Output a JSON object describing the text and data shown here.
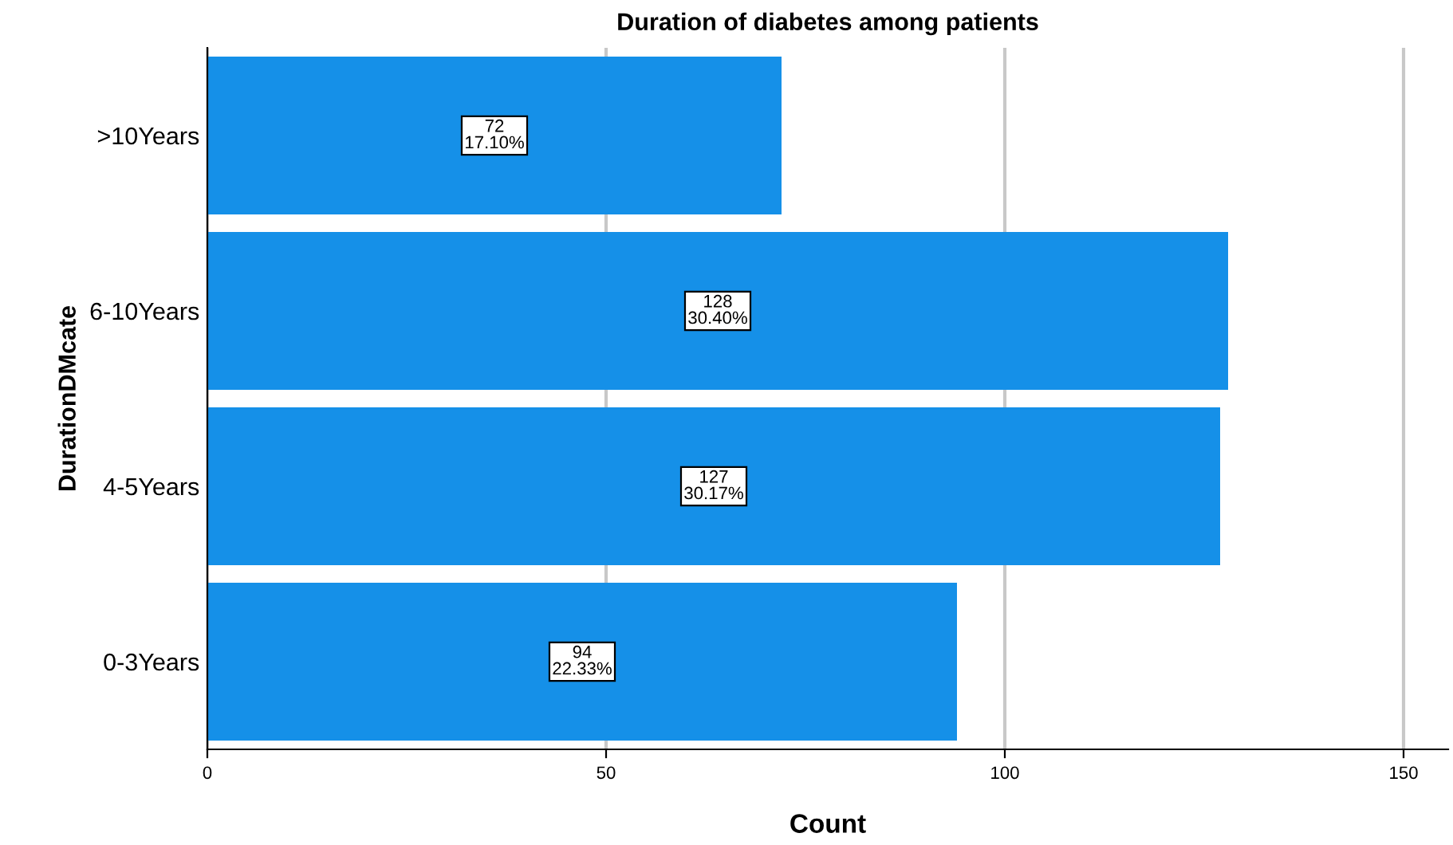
{
  "chart_data": {
    "type": "bar",
    "orientation": "horizontal",
    "title": "Duration of diabetes among patients",
    "xlabel": "Count",
    "ylabel": "DurationDMcate",
    "categories": [
      ">10Years",
      "6-10Years",
      "4-5Years",
      "0-3Years"
    ],
    "values": [
      72,
      128,
      127,
      94
    ],
    "color": "#1590e8",
    "value_labels": [
      "72\n17.10%",
      "128\n30.40%",
      "127\n30.17%",
      "94\n22.33%"
    ],
    "xlim": [
      0,
      155.6
    ],
    "xticks": [
      0,
      50,
      100,
      150
    ],
    "grid": "x",
    "legend": false
  }
}
